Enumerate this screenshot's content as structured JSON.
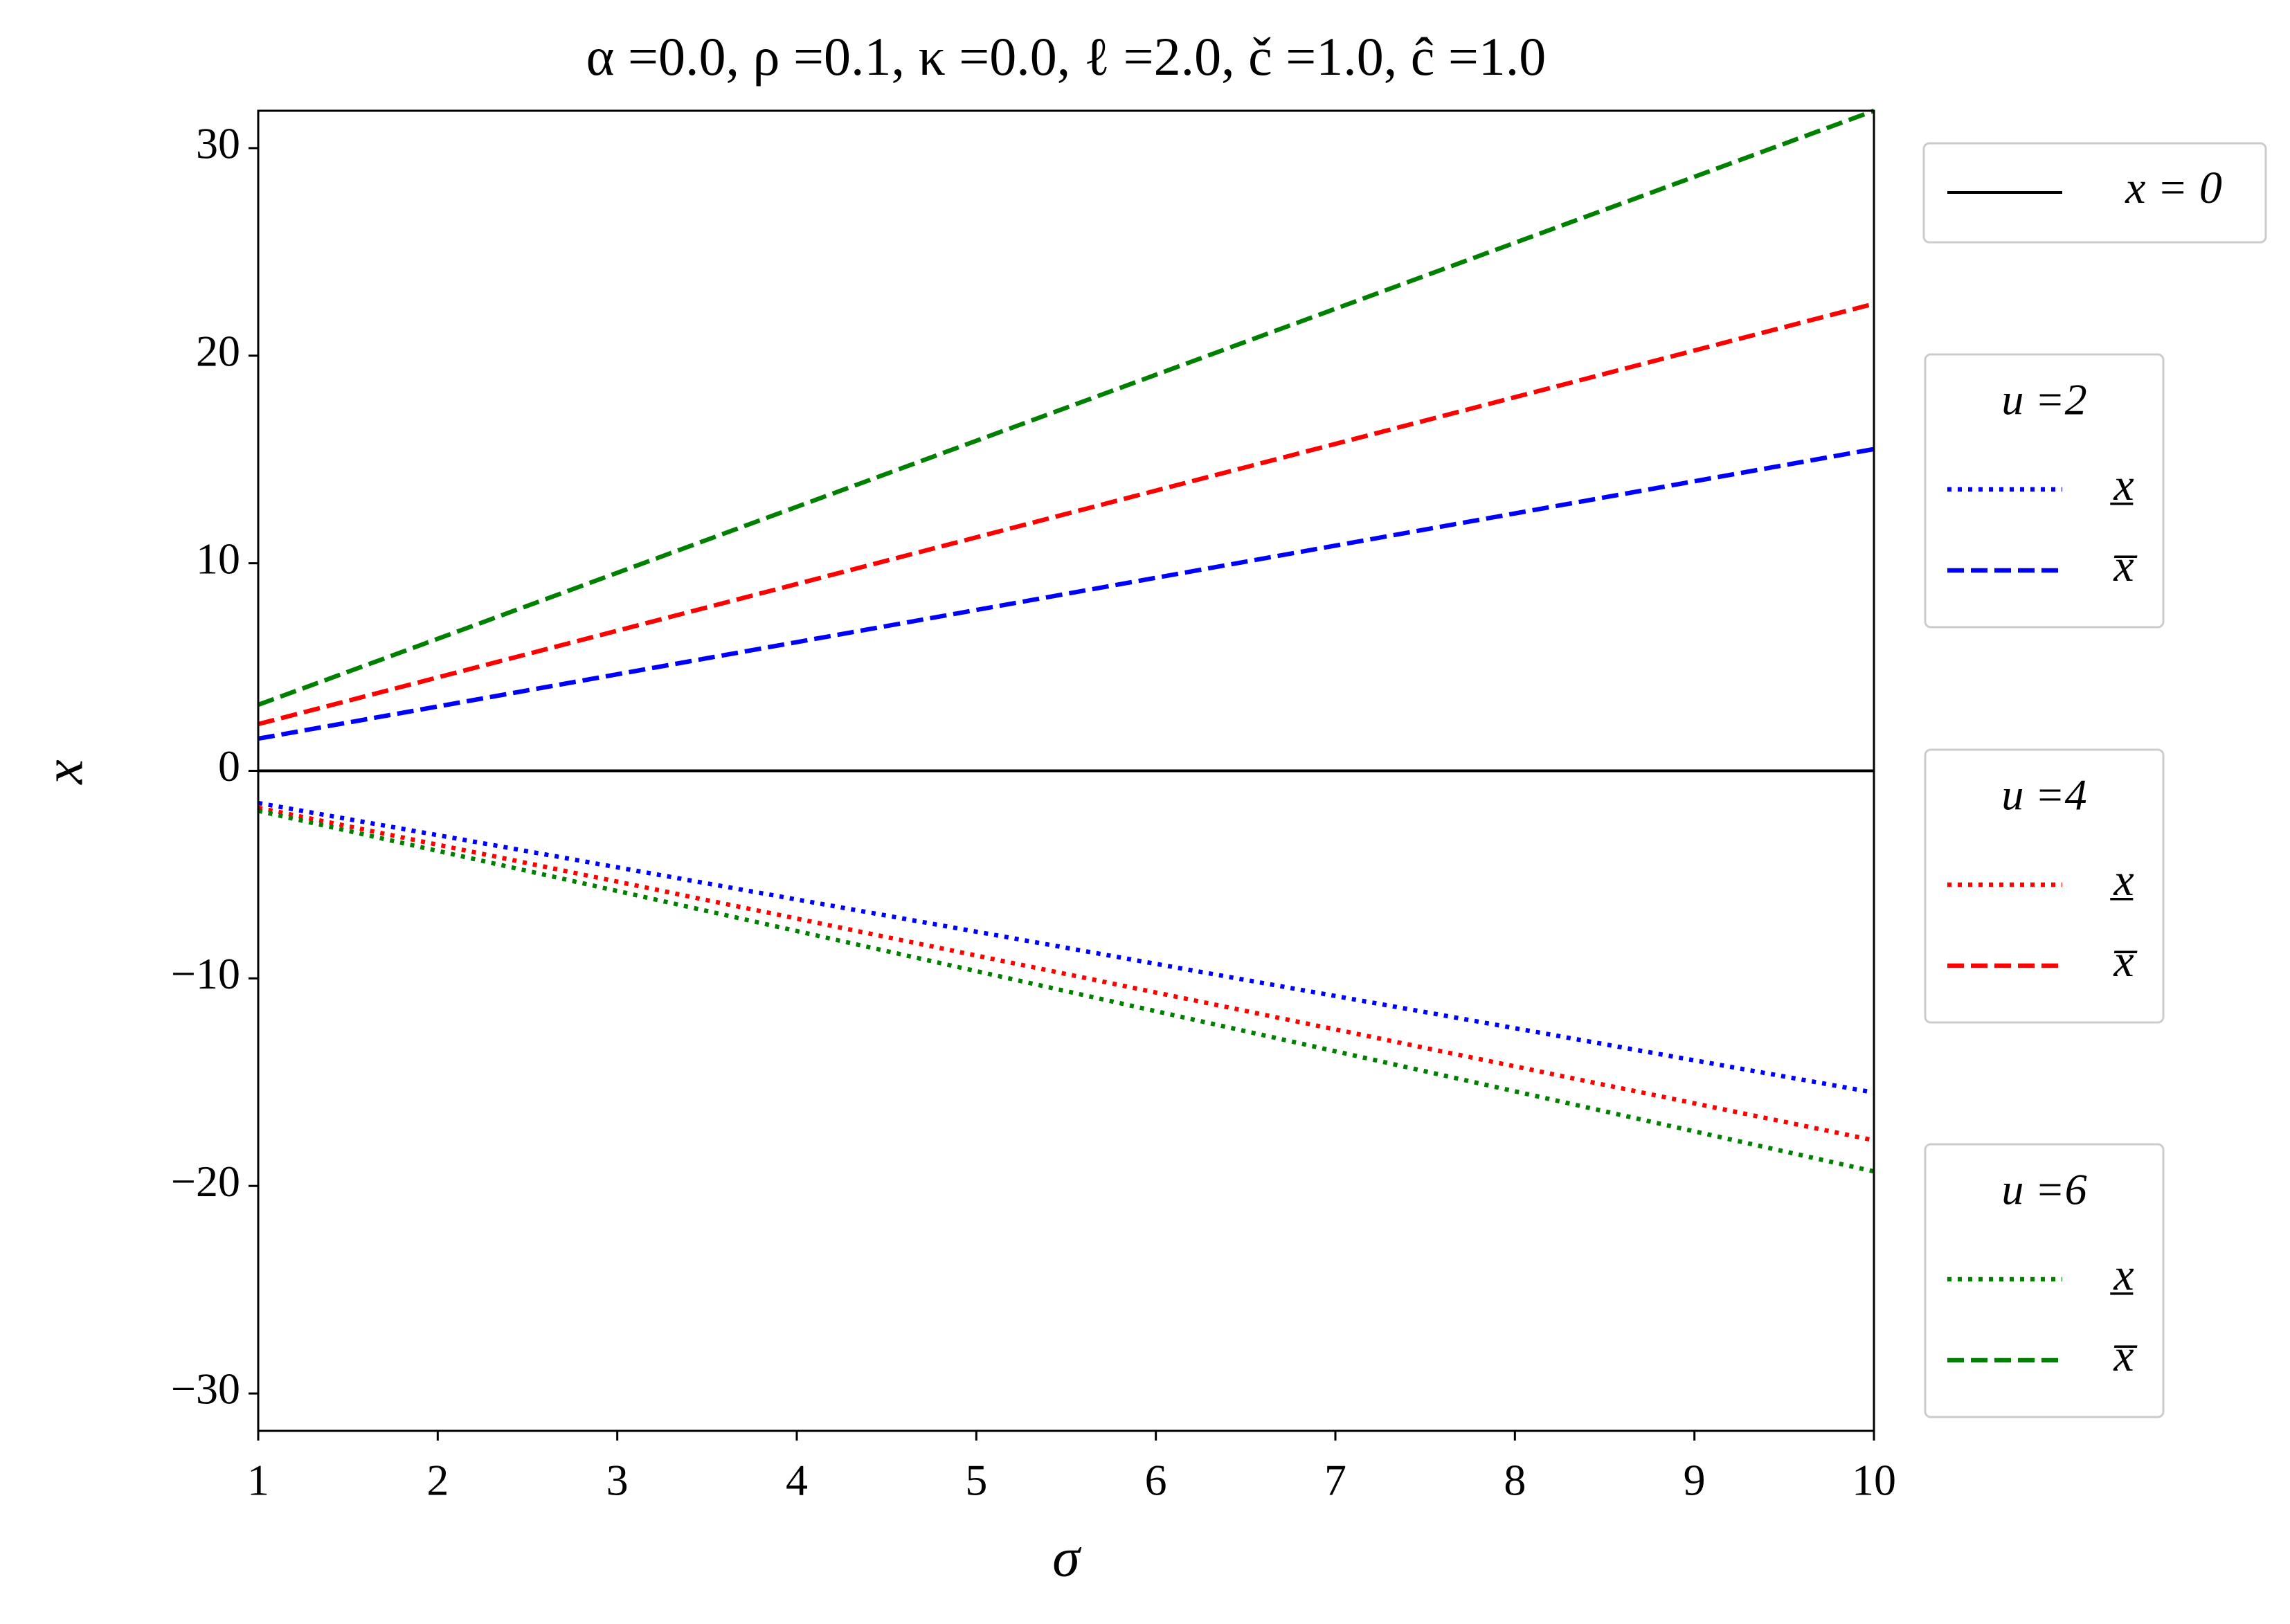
{
  "chart_data": {
    "type": "line",
    "title": "α =0.0, ρ =0.1, κ =0.0, ℓ =2.0, č =1.0, ĉ =1.0",
    "x_label": "σ",
    "y_label": "x",
    "x": [
      1,
      2,
      3,
      4,
      5,
      6,
      7,
      8,
      9,
      10
    ],
    "xlim": [
      1,
      10
    ],
    "xticks": [
      1,
      2,
      3,
      4,
      5,
      6,
      7,
      8,
      9,
      10
    ],
    "ylim": [
      -31.8,
      31.8
    ],
    "yticks": [
      {
        "value": -30,
        "label": "−30"
      },
      {
        "value": -20,
        "label": "−20"
      },
      {
        "value": -10,
        "label": "−10"
      },
      0,
      10,
      20,
      30
    ],
    "hline": {
      "label": "x = 0",
      "value": 0,
      "color": "#000000"
    },
    "groups": [
      {
        "title": "u =2",
        "color": "#0000ff",
        "series": [
          {
            "name": "x̲",
            "style": "dotted",
            "values": [
              -1.55,
              -3.1,
              -4.65,
              -6.2,
              -7.75,
              -9.3,
              -10.85,
              -12.4,
              -13.95,
              -15.5
            ]
          },
          {
            "name": "x̅",
            "style": "dashed",
            "values": [
              1.55,
              3.1,
              4.65,
              6.2,
              7.75,
              9.3,
              10.85,
              12.4,
              13.95,
              15.5
            ]
          }
        ]
      },
      {
        "title": "u =4",
        "color": "#ff0000",
        "series": [
          {
            "name": "x̲",
            "style": "dotted",
            "values": [
              -1.78,
              -3.56,
              -5.34,
              -7.12,
              -8.9,
              -10.68,
              -12.46,
              -14.24,
              -16.02,
              -17.8
            ]
          },
          {
            "name": "x̅",
            "style": "dashed",
            "values": [
              2.25,
              4.5,
              6.75,
              9.0,
              11.25,
              13.5,
              15.75,
              18.0,
              20.25,
              22.5
            ]
          }
        ]
      },
      {
        "title": "u =6",
        "color": "#008000",
        "series": [
          {
            "name": "x̲",
            "style": "dotted",
            "values": [
              -1.93,
              -3.86,
              -5.79,
              -7.72,
              -9.65,
              -11.58,
              -13.51,
              -15.44,
              -17.37,
              -19.3
            ]
          },
          {
            "name": "x̅",
            "style": "dashed",
            "values": [
              3.18,
              6.36,
              9.54,
              12.72,
              15.9,
              19.08,
              22.26,
              25.44,
              28.62,
              31.8
            ]
          }
        ]
      }
    ]
  }
}
